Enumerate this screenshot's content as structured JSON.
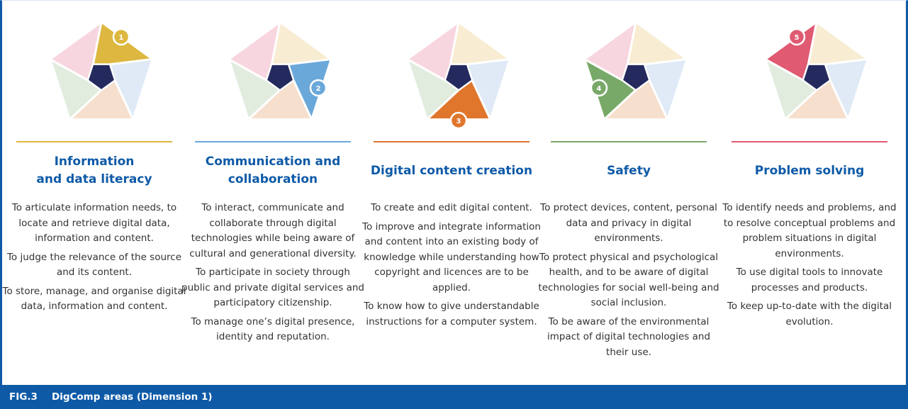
{
  "areas": [
    {
      "number": "1",
      "title_line1": "Information",
      "title_line2": "and data literacy",
      "color": "#ddb73f",
      "descriptions": [
        "To articulate information needs, to locate and retrieve digital data, information and content.",
        "To judge the relevance of the source and its content.",
        "To store, manage, and organise digital data, information and content."
      ]
    },
    {
      "number": "2",
      "title_line1": "Communication and",
      "title_line2": "collaboration",
      "color": "#6aa8da",
      "descriptions": [
        "To interact, communicate and collaborate through digital technologies while being aware of cultural and generational diversity.",
        "To participate in society through public and private digital services and participatory citizenship.",
        "To manage one’s digital presence, identity and reputation."
      ]
    },
    {
      "number": "3",
      "title_line1": "Digital content creation",
      "title_line2": "",
      "color": "#e0762c",
      "descriptions": [
        "To create and edit digital content.",
        "To improve and integrate information and content into an existing body of knowledge while understanding how copyright and licences are to be applied.",
        "To know how to give understandable instructions for a computer system."
      ]
    },
    {
      "number": "4",
      "title_line1": "Safety",
      "title_line2": "",
      "color": "#78a968",
      "descriptions": [
        "To protect devices, content, personal data and privacy in digital environments.",
        "To protect physical and psychological health, and to be aware of digital technologies for social well-being and social inclusion.",
        "To be aware of the environmental impact of digital technologies and their use."
      ]
    },
    {
      "number": "5",
      "title_line1": "Problem solving",
      "title_line2": "",
      "color": "#e05a72",
      "descriptions": [
        "To identify needs and problems, and to resolve conceptual problems and problem situations in digital environments.",
        "To use digital tools to innovate processes and products.",
        "To keep up-to-date with the digital evolution."
      ]
    }
  ],
  "pale_colors": [
    "#f8d6df",
    "#f8ecd2",
    "#dfeaf6",
    "#f7dfcd",
    "#e1ecde"
  ],
  "center_color": "#242a5e",
  "footer": {
    "figure": "FIG.3",
    "caption": "DigComp areas (Dimension 1)"
  }
}
